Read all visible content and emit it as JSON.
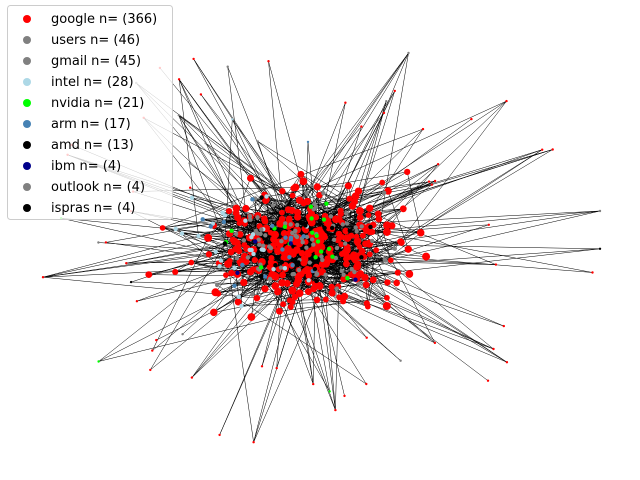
{
  "chart_data": {
    "type": "network",
    "series": [
      {
        "name": "google",
        "color": "#ff0000",
        "values": [
          366
        ],
        "value_labels": [
          "n= (366)"
        ]
      },
      {
        "name": "users",
        "color": "#808080",
        "values": [
          46
        ],
        "value_labels": [
          "n= (46)"
        ]
      },
      {
        "name": "gmail",
        "color": "#808080",
        "values": [
          45
        ],
        "value_labels": [
          "n= (45)"
        ]
      },
      {
        "name": "intel",
        "color": "#add8e6",
        "values": [
          28
        ],
        "value_labels": [
          "n= (28)"
        ]
      },
      {
        "name": "nvidia",
        "color": "#00ff00",
        "values": [
          21
        ],
        "value_labels": [
          "n= (21)"
        ]
      },
      {
        "name": "arm",
        "color": "#4682b4",
        "values": [
          17
        ],
        "value_labels": [
          "n= (17)"
        ]
      },
      {
        "name": "amd",
        "color": "#000000",
        "values": [
          13
        ],
        "value_labels": [
          "n= (13)"
        ]
      },
      {
        "name": "ibm",
        "color": "#00008b",
        "values": [
          4
        ],
        "value_labels": [
          "n= (4)"
        ]
      },
      {
        "name": "outlook",
        "color": "#808080",
        "values": [
          4
        ],
        "value_labels": [
          "n= (4)"
        ]
      },
      {
        "name": "ispras",
        "color": "#000000",
        "values": [
          4
        ],
        "value_labels": [
          "n= (4)"
        ]
      }
    ],
    "legend": "upper left"
  }
}
